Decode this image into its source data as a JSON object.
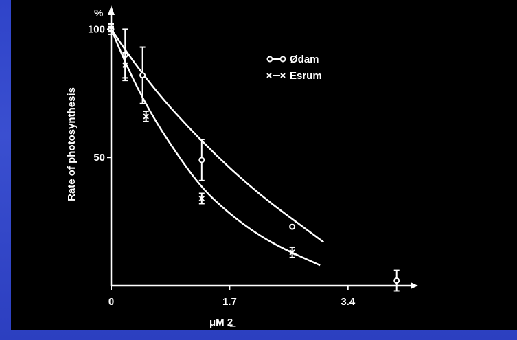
{
  "chart_data": {
    "type": "line",
    "xlabel": "μM 2̲",
    "ylabel": "Rate of photosynthesis",
    "y_unit": "%",
    "x_ticks": [
      "0",
      "1.7",
      "3.4"
    ],
    "y_ticks": [
      "100",
      "50"
    ],
    "xlim": [
      0,
      4.3
    ],
    "ylim": [
      0,
      106
    ],
    "grid": false,
    "legend_position": "top-right",
    "series": [
      {
        "name": "Ødam",
        "marker": "circle",
        "points": [
          {
            "x": 0.0,
            "y": 100,
            "err": 1
          },
          {
            "x": 0.2,
            "y": 90,
            "err": 10
          },
          {
            "x": 0.45,
            "y": 82,
            "err": 11
          },
          {
            "x": 1.3,
            "y": 49,
            "err": 8
          },
          {
            "x": 2.6,
            "y": 23,
            "err": 0
          },
          {
            "x": 4.1,
            "y": 2,
            "err": 4
          }
        ],
        "curve": [
          [
            0.0,
            100
          ],
          [
            0.3,
            88
          ],
          [
            0.7,
            74
          ],
          [
            1.1,
            62
          ],
          [
            1.5,
            51
          ],
          [
            1.9,
            41
          ],
          [
            2.3,
            32
          ],
          [
            2.7,
            24
          ],
          [
            3.05,
            17
          ]
        ]
      },
      {
        "name": "Esrum",
        "marker": "cross",
        "points": [
          {
            "x": 0.0,
            "y": 100,
            "err": 2
          },
          {
            "x": 0.2,
            "y": 86,
            "err": 5
          },
          {
            "x": 0.5,
            "y": 66,
            "err": 2
          },
          {
            "x": 1.3,
            "y": 34,
            "err": 2
          },
          {
            "x": 2.6,
            "y": 13,
            "err": 2
          }
        ],
        "curve": [
          [
            0.0,
            100
          ],
          [
            0.25,
            84
          ],
          [
            0.55,
            68
          ],
          [
            0.9,
            53
          ],
          [
            1.3,
            38
          ],
          [
            1.7,
            28
          ],
          [
            2.1,
            20
          ],
          [
            2.5,
            14
          ],
          [
            3.0,
            8
          ]
        ]
      }
    ]
  }
}
